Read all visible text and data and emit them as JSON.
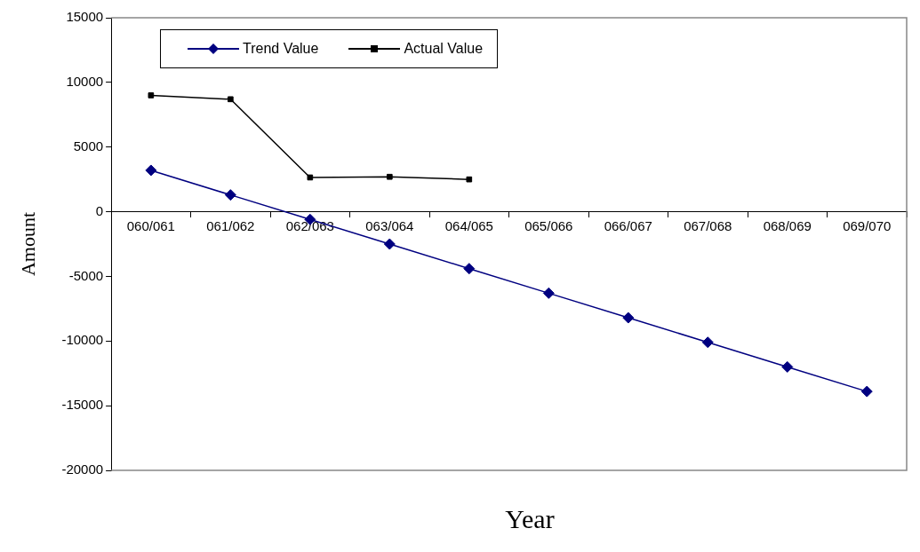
{
  "chart_data": {
    "type": "line",
    "xlabel": "Year",
    "ylabel": "Amount",
    "categories": [
      "060/061",
      "061/062",
      "062/063",
      "063/064",
      "064/065",
      "065/066",
      "066/067",
      "067/068",
      "068/069",
      "069/070"
    ],
    "series": [
      {
        "name": "Trend Value",
        "color": "#000080",
        "marker": "diamond",
        "values": [
          3200,
          1300,
          -600,
          -2500,
          -4400,
          -6300,
          -8200,
          -10100,
          -12000,
          -13900
        ]
      },
      {
        "name": "Actual Value",
        "color": "#000000",
        "marker": "square",
        "values": [
          9000,
          8700,
          2650,
          2700,
          2500,
          null,
          null,
          null,
          null,
          null
        ]
      }
    ],
    "ylim": [
      -20000,
      15000
    ],
    "yticks": [
      -20000,
      -15000,
      -10000,
      -5000,
      0,
      5000,
      10000,
      15000
    ],
    "grid": false,
    "legend": "top left"
  }
}
